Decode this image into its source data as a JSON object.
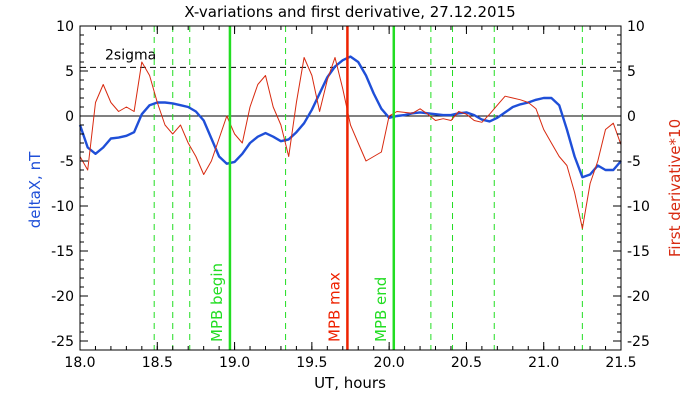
{
  "chart_data": {
    "type": "line",
    "title": "X-variations and first derivative, 27.12.2015",
    "xlabel": "UT, hours",
    "ylabel_left": "deltaX, nT",
    "ylabel_right": "First derivative*10",
    "xlim": [
      18.0,
      21.5
    ],
    "ylim": [
      -26,
      10
    ],
    "x_ticks": [
      "18.0",
      "18.5",
      "19.0",
      "19.5",
      "20.0",
      "20.5",
      "21.0",
      "21.5"
    ],
    "y_ticks": [
      "10",
      "5",
      "0",
      "-5",
      "-10",
      "-15",
      "-20",
      "-25"
    ],
    "threshold": {
      "label": "2sigma",
      "value": 5.4
    },
    "zero_line": 0,
    "vertical_markers": [
      {
        "x": 18.97,
        "label": "MPB begin",
        "color": "#22dd22",
        "style": "solid"
      },
      {
        "x": 19.73,
        "label": "MPB max",
        "color": "#ee2200",
        "style": "solid"
      },
      {
        "x": 20.03,
        "label": "MPB end",
        "color": "#22dd22",
        "style": "solid"
      }
    ],
    "dashed_markers": [
      18.48,
      18.6,
      18.71,
      19.33,
      20.27,
      20.41,
      20.68,
      21.25
    ],
    "series": [
      {
        "name": "deltaX, nT",
        "color": "#1f4fd8",
        "x": [
          18.0,
          18.05,
          18.1,
          18.15,
          18.2,
          18.25,
          18.3,
          18.35,
          18.4,
          18.45,
          18.5,
          18.55,
          18.6,
          18.65,
          18.7,
          18.75,
          18.8,
          18.85,
          18.9,
          18.95,
          19.0,
          19.05,
          19.1,
          19.15,
          19.2,
          19.25,
          19.3,
          19.35,
          19.4,
          19.45,
          19.5,
          19.55,
          19.6,
          19.65,
          19.7,
          19.75,
          19.8,
          19.85,
          19.9,
          19.95,
          20.0,
          20.05,
          20.1,
          20.15,
          20.2,
          20.25,
          20.3,
          20.35,
          20.4,
          20.45,
          20.5,
          20.55,
          20.6,
          20.65,
          20.7,
          20.75,
          20.8,
          20.85,
          20.9,
          20.95,
          21.0,
          21.05,
          21.1,
          21.15,
          21.2,
          21.25,
          21.3,
          21.35,
          21.4,
          21.45,
          21.5
        ],
        "values": [
          -1,
          -3.5,
          -4.2,
          -3.5,
          -2.5,
          -2.4,
          -2.2,
          -1.8,
          0.2,
          1.2,
          1.5,
          1.5,
          1.4,
          1.2,
          1.0,
          0.5,
          -0.5,
          -2.5,
          -4.5,
          -5.3,
          -5.1,
          -4.2,
          -3.0,
          -2.3,
          -1.9,
          -2.3,
          -2.8,
          -2.6,
          -1.8,
          -0.8,
          0.7,
          2.5,
          4.3,
          5.5,
          6.2,
          6.6,
          6.0,
          4.5,
          2.5,
          0.8,
          -0.2,
          0,
          0.1,
          0.3,
          0.4,
          0.3,
          0.2,
          0.1,
          0.1,
          0.3,
          0.4,
          0.1,
          -0.4,
          -0.6,
          -0.2,
          0.4,
          1.0,
          1.3,
          1.5,
          1.8,
          2.0,
          2.0,
          1.2,
          -1.5,
          -4.5,
          -6.8,
          -6.5,
          -5.5,
          -6.0,
          -6.0,
          -5.0
        ]
      },
      {
        "name": "First derivative*10",
        "color": "#d82a10",
        "x": [
          18.0,
          18.05,
          18.1,
          18.15,
          18.2,
          18.25,
          18.3,
          18.35,
          18.4,
          18.45,
          18.5,
          18.55,
          18.6,
          18.65,
          18.7,
          18.75,
          18.8,
          18.85,
          18.9,
          18.95,
          19.0,
          19.05,
          19.1,
          19.15,
          19.2,
          19.25,
          19.3,
          19.35,
          19.4,
          19.45,
          19.5,
          19.55,
          19.6,
          19.65,
          19.7,
          19.75,
          19.8,
          19.85,
          19.9,
          19.95,
          20.0,
          20.05,
          20.1,
          20.15,
          20.2,
          20.25,
          20.3,
          20.35,
          20.4,
          20.45,
          20.5,
          20.55,
          20.6,
          20.65,
          20.7,
          20.75,
          20.8,
          20.85,
          20.9,
          20.95,
          21.0,
          21.05,
          21.1,
          21.15,
          21.2,
          21.25,
          21.3,
          21.35,
          21.4,
          21.45,
          21.5
        ],
        "values": [
          -4.5,
          -6.0,
          1.5,
          3.5,
          1.5,
          0.5,
          1.0,
          0.5,
          6.0,
          4.5,
          1.5,
          -1.0,
          -2.0,
          -1.0,
          -3.0,
          -4.5,
          -6.5,
          -5.0,
          -2.5,
          0,
          -2.0,
          -3.0,
          1.0,
          3.5,
          4.5,
          1.0,
          -1.0,
          -4.5,
          1.5,
          6.5,
          4.5,
          0.5,
          4.0,
          6.5,
          3.0,
          -1.0,
          -3.0,
          -5.0,
          -4.5,
          -4.0,
          0,
          0.5,
          0.4,
          0.3,
          0.8,
          0.2,
          -0.5,
          -0.3,
          -0.5,
          0.5,
          0.2,
          -0.5,
          -0.7,
          0.2,
          1.2,
          2.2,
          2.0,
          1.8,
          1.5,
          0.8,
          -1.5,
          -3.0,
          -4.5,
          -5.5,
          -8.5,
          -12.5,
          -7.5,
          -5.0,
          -1.5,
          -0.8,
          -3.2
        ]
      }
    ],
    "axis_colors": {
      "left_label": "#1f4fd8",
      "right_label": "#d82a10"
    }
  }
}
